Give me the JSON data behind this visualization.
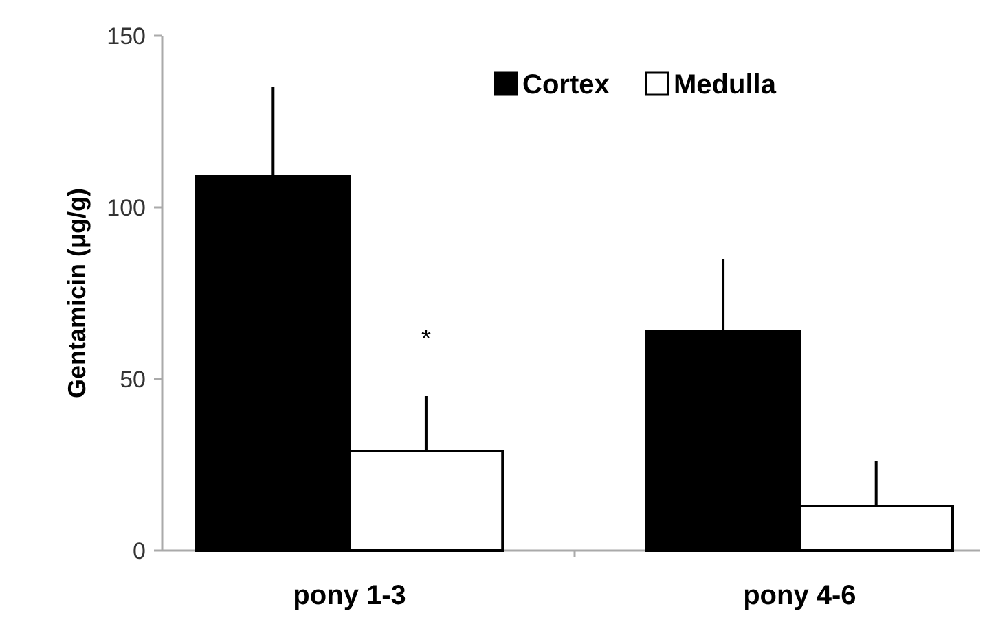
{
  "chart_data": {
    "type": "bar",
    "ylabel": "Gentamicin (μg/g)",
    "categories": [
      "pony 1-3",
      "pony 4-6"
    ],
    "series": [
      {
        "name": "Cortex",
        "color": "#000000",
        "values": [
          109,
          64
        ],
        "errors": [
          [
            109,
            135
          ],
          [
            64,
            85
          ]
        ]
      },
      {
        "name": "Medulla",
        "color": "#ffffff",
        "values": [
          29,
          13
        ],
        "errors": [
          [
            29,
            45
          ],
          [
            13,
            26
          ]
        ]
      }
    ],
    "ylim": [
      0,
      150
    ],
    "yticks": [
      0,
      50,
      100,
      150
    ],
    "grid": false,
    "legend": "top right",
    "annotations": [
      "*"
    ]
  }
}
